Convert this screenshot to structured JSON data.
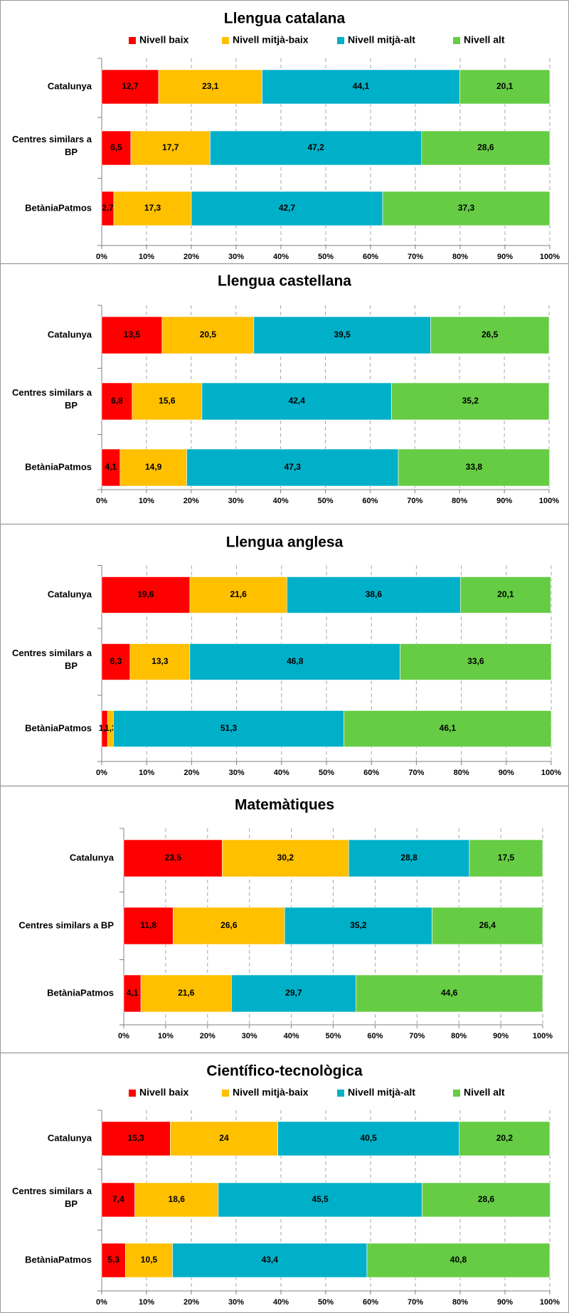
{
  "legend": [
    {
      "label": "Nivell baix",
      "color": "#ff0000"
    },
    {
      "label": "Nivell mitjà-baix",
      "color": "#ffc000"
    },
    {
      "label": "Nivell mitjà-alt",
      "color": "#00b0c8"
    },
    {
      "label": "Nivell alt",
      "color": "#66cc44"
    }
  ],
  "chart_data": [
    {
      "type": "bar",
      "stacked": true,
      "orientation": "horizontal",
      "title": "Llengua  catalana",
      "legend_shown": true,
      "categories": [
        "Catalunya",
        "Centres similars a BP",
        "BetàniaPatmos"
      ],
      "series": [
        {
          "name": "Nivell baix",
          "values": [
            12.7,
            6.5,
            2.7
          ]
        },
        {
          "name": "Nivell mitjà-baix",
          "values": [
            23.1,
            17.7,
            17.3
          ]
        },
        {
          "name": "Nivell mitjà-alt",
          "values": [
            44.1,
            47.2,
            42.7
          ]
        },
        {
          "name": "Nivell alt",
          "values": [
            20.1,
            28.6,
            37.3
          ]
        }
      ],
      "value_labels": [
        [
          "12,7",
          "6,5",
          "2,7"
        ],
        [
          "23,1",
          "17,7",
          "17,3"
        ],
        [
          "44,1",
          "47,2",
          "42,7"
        ],
        [
          "20,1",
          "28,6",
          "37,3"
        ]
      ],
      "xticks": [
        "0%",
        "10%",
        "20%",
        "30%",
        "40%",
        "50%",
        "60%",
        "70%",
        "80%",
        "90%",
        "100%"
      ],
      "xlim": [
        0,
        100
      ],
      "grid": "vertical dashed"
    },
    {
      "type": "bar",
      "stacked": true,
      "orientation": "horizontal",
      "title": "Llengua  castellana",
      "legend_shown": false,
      "categories": [
        "Catalunya",
        "Centres similars a BP",
        "BetàniaPatmos"
      ],
      "series": [
        {
          "name": "Nivell baix",
          "values": [
            13.5,
            6.8,
            4.1
          ]
        },
        {
          "name": "Nivell mitjà-baix",
          "values": [
            20.5,
            15.6,
            14.9
          ]
        },
        {
          "name": "Nivell mitjà-alt",
          "values": [
            39.5,
            42.4,
            47.3
          ]
        },
        {
          "name": "Nivell alt",
          "values": [
            26.5,
            35.2,
            33.8
          ]
        }
      ],
      "value_labels": [
        [
          "13,5",
          "6,8",
          "4,1"
        ],
        [
          "20,5",
          "15,6",
          "14,9"
        ],
        [
          "39,5",
          "42,4",
          "47,3"
        ],
        [
          "26,5",
          "35,2",
          "33,8"
        ]
      ],
      "xticks": [
        "0%",
        "10%",
        "20%",
        "30%",
        "40%",
        "50%",
        "60%",
        "70%",
        "80%",
        "90%",
        "100%"
      ],
      "xlim": [
        0,
        100
      ],
      "grid": "vertical dashed"
    },
    {
      "type": "bar",
      "stacked": true,
      "orientation": "horizontal",
      "title": "Llengua  anglesa",
      "legend_shown": false,
      "categories": [
        "Catalunya",
        "Centres similars a BP",
        "BetàniaPatmos"
      ],
      "series": [
        {
          "name": "Nivell baix",
          "values": [
            19.6,
            6.3,
            1.3
          ]
        },
        {
          "name": "Nivell mitjà-baix",
          "values": [
            21.6,
            13.3,
            1.3
          ]
        },
        {
          "name": "Nivell mitjà-alt",
          "values": [
            38.6,
            46.8,
            51.3
          ]
        },
        {
          "name": "Nivell alt",
          "values": [
            20.1,
            33.6,
            46.1
          ]
        }
      ],
      "value_labels": [
        [
          "19,6",
          "6,3",
          "1,3"
        ],
        [
          "21,6",
          "13,3",
          "1,3"
        ],
        [
          "38,6",
          "46,8",
          "51,3"
        ],
        [
          "20,1",
          "33,6",
          "46,1"
        ]
      ],
      "xticks": [
        "0%",
        "10%",
        "20%",
        "30%",
        "40%",
        "50%",
        "60%",
        "70%",
        "80%",
        "90%",
        "100%"
      ],
      "xlim": [
        0,
        100
      ],
      "grid": "vertical dashed"
    },
    {
      "type": "bar",
      "stacked": true,
      "orientation": "horizontal",
      "title": "Matemàtiques",
      "legend_shown": false,
      "categories": [
        "Catalunya",
        "Centres similars a BP",
        "BetàniaPatmos"
      ],
      "series": [
        {
          "name": "Nivell baix",
          "values": [
            23.5,
            11.8,
            4.1
          ]
        },
        {
          "name": "Nivell mitjà-baix",
          "values": [
            30.2,
            26.6,
            21.6
          ]
        },
        {
          "name": "Nivell mitjà-alt",
          "values": [
            28.8,
            35.2,
            29.7
          ]
        },
        {
          "name": "Nivell alt",
          "values": [
            17.5,
            26.4,
            44.6
          ]
        }
      ],
      "value_labels": [
        [
          "23,5",
          "11,8",
          "4,1"
        ],
        [
          "30,2",
          "26,6",
          "21,6"
        ],
        [
          "28,8",
          "35,2",
          "29,7"
        ],
        [
          "17,5",
          "26,4",
          "44,6"
        ]
      ],
      "xticks": [
        "0%",
        "10%",
        "20%",
        "30%",
        "40%",
        "50%",
        "60%",
        "70%",
        "80%",
        "90%",
        "100%"
      ],
      "xlim": [
        0,
        100
      ],
      "grid": "vertical dashed"
    },
    {
      "type": "bar",
      "stacked": true,
      "orientation": "horizontal",
      "title": "Científico-tecnològica",
      "legend_shown": true,
      "categories": [
        "Catalunya",
        "Centres similars a BP",
        "BetàniaPatmos"
      ],
      "series": [
        {
          "name": "Nivell baix",
          "values": [
            15.3,
            7.4,
            5.3
          ]
        },
        {
          "name": "Nivell mitjà-baix",
          "values": [
            24,
            18.6,
            10.5
          ]
        },
        {
          "name": "Nivell mitjà-alt",
          "values": [
            40.5,
            45.5,
            43.4
          ]
        },
        {
          "name": "Nivell alt",
          "values": [
            20.2,
            28.6,
            40.8
          ]
        }
      ],
      "value_labels": [
        [
          "15,3",
          "7,4",
          "5,3"
        ],
        [
          "24",
          "18,6",
          "10,5"
        ],
        [
          "40,5",
          "45,5",
          "43,4"
        ],
        [
          "20,2",
          "28,6",
          "40,8"
        ]
      ],
      "xticks": [
        "0%",
        "10%",
        "20%",
        "30%",
        "40%",
        "50%",
        "60%",
        "70%",
        "80%",
        "90%",
        "100%"
      ],
      "xlim": [
        0,
        100
      ],
      "grid": "vertical dashed"
    }
  ]
}
